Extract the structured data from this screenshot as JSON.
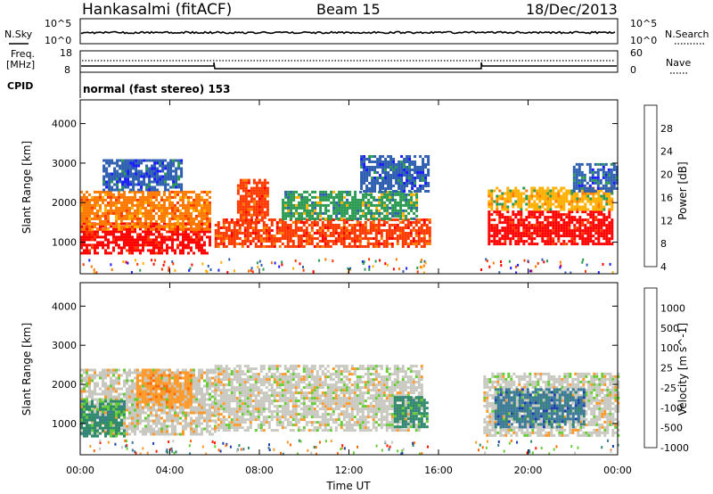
{
  "header": {
    "station": "Hankasalmi (fitACF)",
    "beam": "Beam 15",
    "date": "18/Dec/2013"
  },
  "info_panels": {
    "nsky_label": "N.Sky",
    "nsearch_label": "N.Search",
    "nsky_ticks": [
      "10^5",
      "10^0"
    ],
    "nsearch_ticks": [
      "10^5",
      "10^0"
    ],
    "freq_label_1": "Freq.",
    "freq_label_2": "[MHz]",
    "freq_ticks": [
      "18",
      "8"
    ],
    "nave_label": "Nave",
    "nave_ticks": [
      "60",
      "0"
    ],
    "cpid_label": "CPID",
    "cpid_text": "normal (fast stereo) 153"
  },
  "chart_data": [
    {
      "type": "heatmap",
      "panel": "power",
      "ylabel": "Slant Range [km]",
      "ylim": [
        200,
        4600
      ],
      "y_ticks": [
        1000,
        2000,
        3000,
        4000
      ],
      "colorbar_label": "Power [dB]",
      "colorbar_ticks": [
        "28",
        "24",
        "20",
        "16",
        "12",
        "8",
        "4"
      ],
      "colorbar_colors": [
        "#ff0000",
        "#ff3a00",
        "#ff7a00",
        "#ffb000",
        "#2a9a52",
        "#2e5fb0",
        "#1a1aff"
      ],
      "regions": [
        {
          "t0": 0.0,
          "t1": 5.8,
          "r0": 750,
          "r1": 1500,
          "power": 28
        },
        {
          "t0": 0.0,
          "t1": 5.8,
          "r0": 1300,
          "r1": 2300,
          "power": 20
        },
        {
          "t0": 1.0,
          "t1": 4.5,
          "r0": 2300,
          "r1": 3100,
          "power": 6
        },
        {
          "t0": 7.0,
          "t1": 8.4,
          "r0": 1500,
          "r1": 2600,
          "power": 24
        },
        {
          "t0": 6.0,
          "t1": 15.6,
          "r0": 900,
          "r1": 1600,
          "power": 24
        },
        {
          "t0": 9.0,
          "t1": 15.0,
          "r0": 1600,
          "r1": 2300,
          "power": 12
        },
        {
          "t0": 12.5,
          "t1": 15.5,
          "r0": 2300,
          "r1": 3200,
          "power": 6
        },
        {
          "t0": 18.2,
          "t1": 23.8,
          "r0": 950,
          "r1": 1800,
          "power": 28
        },
        {
          "t0": 18.2,
          "t1": 23.8,
          "r0": 1800,
          "r1": 2400,
          "power": 14
        },
        {
          "t0": 22.0,
          "t1": 24.0,
          "r0": 2300,
          "r1": 3000,
          "power": 8
        }
      ]
    },
    {
      "type": "heatmap",
      "panel": "velocity",
      "xlabel": "Time UT",
      "ylabel": "Slant Range [km]",
      "xlim": [
        0,
        24
      ],
      "x_ticks": [
        "00:00",
        "04:00",
        "08:00",
        "12:00",
        "16:00",
        "20:00",
        "00:00"
      ],
      "ylim": [
        200,
        4600
      ],
      "y_ticks": [
        1000,
        2000,
        3000,
        4000
      ],
      "colorbar_label": "Velocity [m s^-1]",
      "colorbar_ticks": [
        "1000",
        "500",
        "100",
        "25",
        "-25",
        "-100",
        "-500",
        "-1000"
      ],
      "colorbar_colors": [
        "#1c3fb0",
        "#3a7a98",
        "#2e8a6a",
        "#66cc33",
        "#c8c8c0",
        "#ff9a2a",
        "#ff6a00",
        "#ff1a00"
      ],
      "regions": [
        {
          "t0": 0.0,
          "t1": 6.0,
          "r0": 700,
          "r1": 2400,
          "velocity": 0
        },
        {
          "t0": 2.5,
          "t1": 5.0,
          "r0": 1400,
          "r1": 2400,
          "velocity": -300
        },
        {
          "t0": 0.0,
          "t1": 2.0,
          "r0": 700,
          "r1": 1600,
          "velocity": 60
        },
        {
          "t0": 6.0,
          "t1": 15.2,
          "r0": 800,
          "r1": 2500,
          "velocity": 0
        },
        {
          "t0": 14.0,
          "t1": 15.5,
          "r0": 900,
          "r1": 1700,
          "velocity": 60
        },
        {
          "t0": 18.0,
          "t1": 24.0,
          "r0": 700,
          "r1": 2300,
          "velocity": 0
        },
        {
          "t0": 18.5,
          "t1": 22.5,
          "r0": 900,
          "r1": 1900,
          "velocity": 300
        }
      ]
    }
  ],
  "colors": {
    "trace": "#000000",
    "frame": "#000000"
  }
}
